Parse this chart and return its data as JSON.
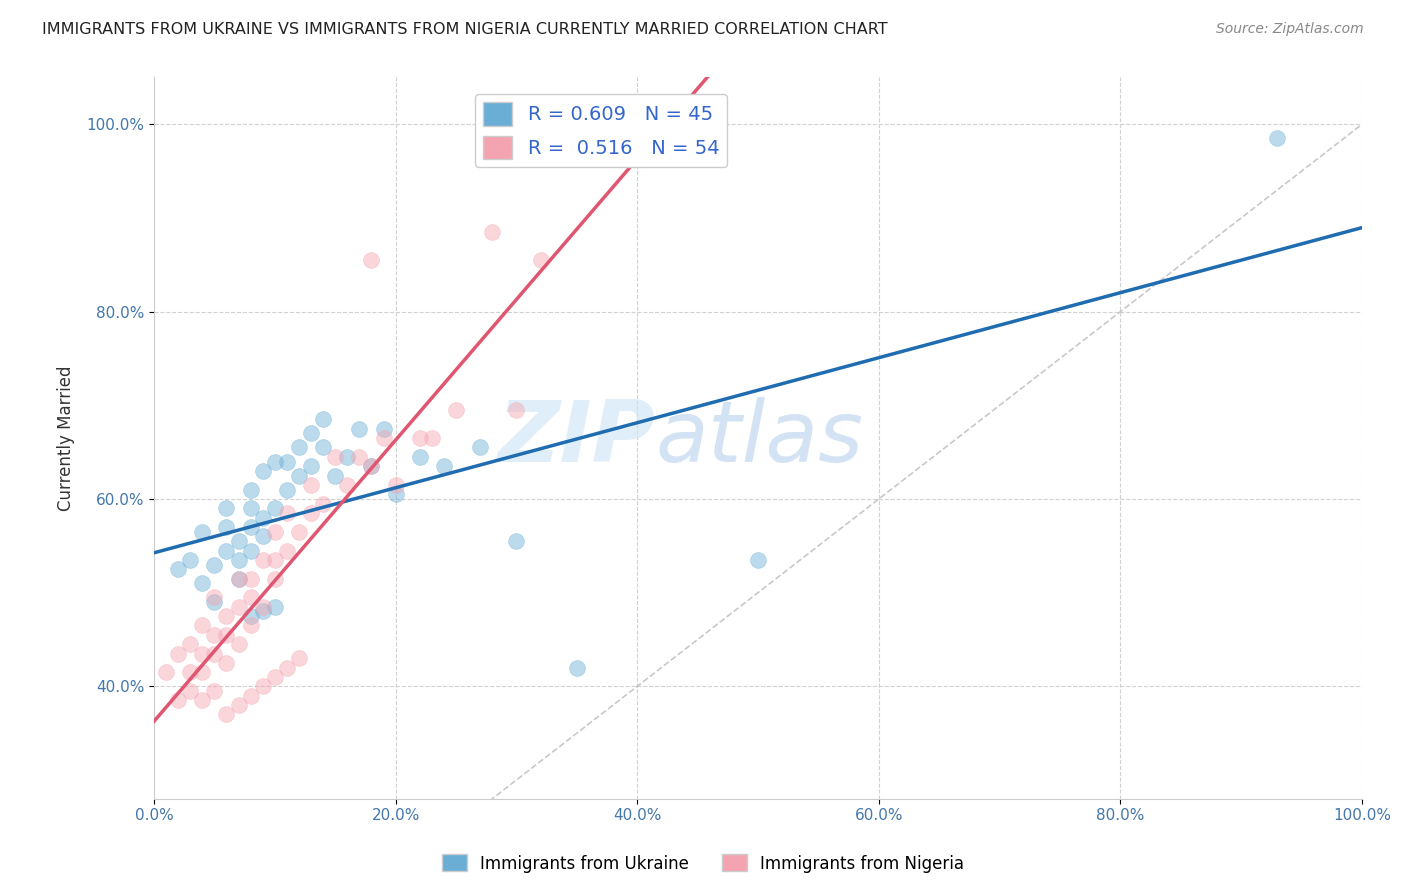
{
  "title": "IMMIGRANTS FROM UKRAINE VS IMMIGRANTS FROM NIGERIA CURRENTLY MARRIED CORRELATION CHART",
  "source": "Source: ZipAtlas.com",
  "ylabel": "Currently Married",
  "legend_ukraine": "Immigrants from Ukraine",
  "legend_nigeria": "Immigrants from Nigeria",
  "R_ukraine": 0.609,
  "N_ukraine": 45,
  "R_nigeria": 0.516,
  "N_nigeria": 54,
  "color_ukraine": "#6aaed6",
  "color_nigeria": "#f4a4b0",
  "color_trend_ukraine": "#1f6cb0",
  "color_trend_nigeria": "#e05570",
  "xlim": [
    0.0,
    1.0
  ],
  "ylim": [
    0.28,
    1.05
  ],
  "xticks": [
    0.0,
    0.2,
    0.4,
    0.6,
    0.8,
    1.0
  ],
  "yticks": [
    0.4,
    0.6,
    0.8,
    1.0
  ],
  "xtick_labels": [
    "0.0%",
    "20.0%",
    "40.0%",
    "60.0%",
    "80.0%",
    "100.0%"
  ],
  "ytick_labels": [
    "40.0%",
    "60.0%",
    "80.0%",
    "100.0%"
  ],
  "watermark_zip": "ZIP",
  "watermark_atlas": "atlas",
  "ukraine_x": [
    0.02,
    0.03,
    0.04,
    0.04,
    0.05,
    0.05,
    0.06,
    0.06,
    0.06,
    0.07,
    0.07,
    0.07,
    0.08,
    0.08,
    0.08,
    0.08,
    0.09,
    0.09,
    0.09,
    0.1,
    0.1,
    0.11,
    0.11,
    0.12,
    0.12,
    0.13,
    0.13,
    0.14,
    0.14,
    0.15,
    0.16,
    0.17,
    0.18,
    0.19,
    0.2,
    0.22,
    0.24,
    0.27,
    0.3,
    0.5,
    0.93,
    0.08,
    0.09,
    0.1,
    0.35
  ],
  "ukraine_y": [
    0.525,
    0.535,
    0.51,
    0.565,
    0.49,
    0.53,
    0.545,
    0.57,
    0.59,
    0.515,
    0.535,
    0.555,
    0.545,
    0.57,
    0.59,
    0.61,
    0.56,
    0.58,
    0.63,
    0.59,
    0.64,
    0.61,
    0.64,
    0.625,
    0.655,
    0.635,
    0.67,
    0.655,
    0.685,
    0.625,
    0.645,
    0.675,
    0.635,
    0.675,
    0.605,
    0.645,
    0.635,
    0.655,
    0.555,
    0.535,
    0.985,
    0.475,
    0.48,
    0.485,
    0.42
  ],
  "nigeria_x": [
    0.01,
    0.02,
    0.02,
    0.03,
    0.03,
    0.03,
    0.04,
    0.04,
    0.04,
    0.04,
    0.05,
    0.05,
    0.05,
    0.05,
    0.06,
    0.06,
    0.06,
    0.07,
    0.07,
    0.07,
    0.08,
    0.08,
    0.08,
    0.09,
    0.09,
    0.1,
    0.1,
    0.1,
    0.11,
    0.11,
    0.12,
    0.13,
    0.13,
    0.14,
    0.15,
    0.16,
    0.17,
    0.18,
    0.19,
    0.2,
    0.22,
    0.23,
    0.25,
    0.3,
    0.18,
    0.28,
    0.32,
    0.06,
    0.07,
    0.08,
    0.09,
    0.1,
    0.11,
    0.12
  ],
  "nigeria_y": [
    0.415,
    0.385,
    0.435,
    0.395,
    0.415,
    0.445,
    0.385,
    0.415,
    0.435,
    0.465,
    0.395,
    0.435,
    0.455,
    0.495,
    0.425,
    0.455,
    0.475,
    0.445,
    0.485,
    0.515,
    0.465,
    0.495,
    0.515,
    0.485,
    0.535,
    0.515,
    0.535,
    0.565,
    0.545,
    0.585,
    0.565,
    0.585,
    0.615,
    0.595,
    0.645,
    0.615,
    0.645,
    0.635,
    0.665,
    0.615,
    0.665,
    0.665,
    0.695,
    0.695,
    0.855,
    0.885,
    0.855,
    0.37,
    0.38,
    0.39,
    0.4,
    0.41,
    0.42,
    0.43
  ],
  "background_color": "#ffffff",
  "grid_color": "#cccccc",
  "marker_size": 130,
  "marker_alpha": 0.45
}
